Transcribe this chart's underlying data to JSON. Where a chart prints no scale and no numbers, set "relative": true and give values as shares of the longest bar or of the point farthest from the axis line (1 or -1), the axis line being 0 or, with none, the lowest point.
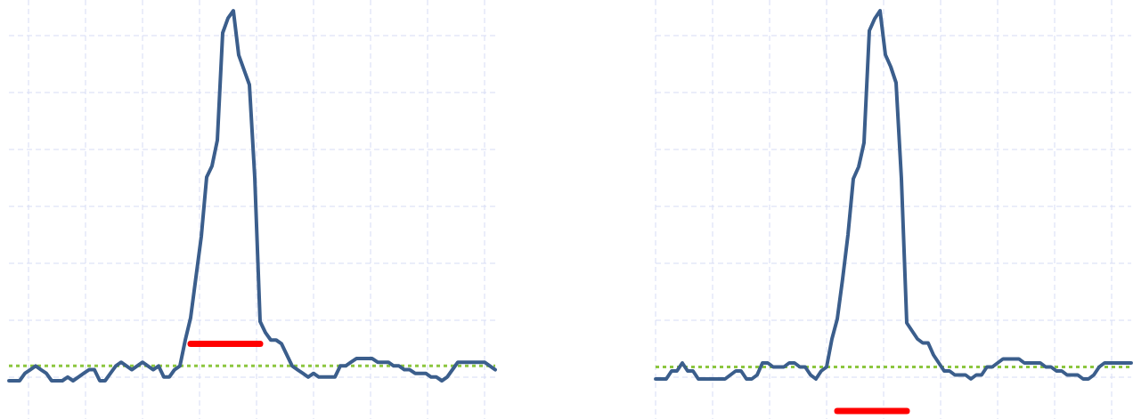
{
  "chart_data": [
    {
      "type": "line",
      "relative": true,
      "grid": true,
      "categories": [
        null,
        null,
        null,
        null,
        null,
        null,
        null,
        null,
        null,
        null,
        null,
        null,
        null,
        null,
        null,
        null,
        null,
        null,
        null,
        null,
        null,
        null,
        null,
        null,
        null,
        null,
        null,
        null,
        null,
        null,
        null,
        null,
        null,
        null,
        null,
        null,
        null,
        null,
        null,
        null,
        null,
        null,
        null,
        null,
        null,
        null,
        null,
        null,
        null,
        null,
        null,
        null,
        null,
        null,
        null,
        null,
        null,
        null,
        null,
        null,
        null,
        null,
        null,
        null,
        null,
        null,
        null,
        null,
        null,
        null,
        null,
        null,
        null,
        null,
        null,
        null,
        null,
        null,
        null,
        null,
        null,
        null,
        null,
        null,
        null,
        null,
        null,
        null,
        null,
        null,
        null,
        null
      ],
      "series": [
        {
          "color": "#3b5e8c",
          "values": [
            0,
            0,
            0,
            0.02,
            0.03,
            0.04,
            0.03,
            0.02,
            0,
            0,
            0,
            0.01,
            0,
            0.01,
            0.02,
            0.03,
            0.03,
            0,
            0,
            0.02,
            0.04,
            0.05,
            0.04,
            0.03,
            0.04,
            0.05,
            0.04,
            0.03,
            0.04,
            0.01,
            0.01,
            0.03,
            0.04,
            0.11,
            0.17,
            0.28,
            0.39,
            0.55,
            0.58,
            0.65,
            0.94,
            0.98,
            1,
            0.88,
            0.84,
            0.8,
            0.55,
            0.16,
            0.13,
            0.11,
            0.11,
            0.1,
            0.07,
            0.04,
            0.03,
            0.02,
            0.01,
            0.02,
            0.01,
            0.01,
            0.01,
            0.01,
            0.04,
            0.04,
            0.05,
            0.06,
            0.06,
            0.06,
            0.06,
            0.05,
            0.05,
            0.05,
            0.04,
            0.04,
            0.03,
            0.03,
            0.02,
            0.02,
            0.02,
            0.01,
            0.01,
            0,
            0.01,
            0.03,
            0.05,
            0.05,
            0.05,
            0.05,
            0.05,
            0.05,
            0.04,
            0.03
          ]
        },
        {
          "color": "#ff0000",
          "values": [
            null,
            null,
            null,
            null,
            null,
            null,
            null,
            null,
            null,
            null,
            null,
            null,
            null,
            null,
            null,
            null,
            null,
            null,
            null,
            null,
            null,
            null,
            null,
            null,
            null,
            null,
            null,
            null,
            null,
            null,
            null,
            null,
            null,
            null,
            0.1,
            0.1,
            0.1,
            0.1,
            0.1,
            0.1,
            0.1,
            0.1,
            0.1,
            0.1,
            0.1,
            0.1,
            0.1,
            0.1,
            null,
            null,
            null,
            null,
            null,
            null,
            null,
            null,
            null,
            null,
            null,
            null,
            null,
            null,
            null,
            null,
            null,
            null,
            null,
            null,
            null,
            null,
            null,
            null,
            null,
            null,
            null,
            null,
            null,
            null,
            null,
            null,
            null,
            null,
            null,
            null,
            null,
            null,
            null,
            null,
            null,
            null,
            null,
            null
          ]
        }
      ],
      "ref_lines": [
        {
          "axis": "y",
          "value": 0.04,
          "color": "#8cc63f",
          "line_style": "dotted"
        }
      ]
    },
    {
      "type": "line",
      "relative": true,
      "grid": true,
      "categories": [
        null,
        null,
        null,
        null,
        null,
        null,
        null,
        null,
        null,
        null,
        null,
        null,
        null,
        null,
        null,
        null,
        null,
        null,
        null,
        null,
        null,
        null,
        null,
        null,
        null,
        null,
        null,
        null,
        null,
        null,
        null,
        null,
        null,
        null,
        null,
        null,
        null,
        null,
        null,
        null,
        null,
        null,
        null,
        null,
        null,
        null,
        null,
        null,
        null,
        null,
        null,
        null,
        null,
        null,
        null,
        null,
        null,
        null,
        null,
        null,
        null,
        null,
        null,
        null,
        null,
        null,
        null,
        null,
        null,
        null,
        null,
        null,
        null,
        null,
        null,
        null,
        null,
        null,
        null,
        null,
        null,
        null,
        null,
        null,
        null,
        null,
        null,
        null,
        null,
        null
      ],
      "series": [
        {
          "color": "#3b5e8c",
          "values": [
            0.08,
            0.08,
            0.08,
            0.1,
            0.1,
            0.12,
            0.1,
            0.1,
            0.08,
            0.08,
            0.08,
            0.08,
            0.08,
            0.08,
            0.09,
            0.1,
            0.1,
            0.08,
            0.08,
            0.09,
            0.12,
            0.12,
            0.11,
            0.11,
            0.11,
            0.12,
            0.12,
            0.11,
            0.11,
            0.09,
            0.08,
            0.1,
            0.11,
            0.18,
            0.23,
            0.33,
            0.44,
            0.58,
            0.61,
            0.67,
            0.95,
            0.98,
            1,
            0.89,
            0.86,
            0.82,
            0.58,
            0.22,
            0.2,
            0.18,
            0.17,
            0.17,
            0.14,
            0.12,
            0.1,
            0.1,
            0.09,
            0.09,
            0.09,
            0.08,
            0.09,
            0.09,
            0.11,
            0.11,
            0.12,
            0.13,
            0.13,
            0.13,
            0.13,
            0.12,
            0.12,
            0.12,
            0.12,
            0.11,
            0.11,
            0.1,
            0.1,
            0.09,
            0.09,
            0.09,
            0.08,
            0.08,
            0.09,
            0.11,
            0.12,
            0.12,
            0.12,
            0.12,
            0.12,
            0.12
          ]
        },
        {
          "color": "#ff0000",
          "values": [
            null,
            null,
            null,
            null,
            null,
            null,
            null,
            null,
            null,
            null,
            null,
            null,
            null,
            null,
            null,
            null,
            null,
            null,
            null,
            null,
            null,
            null,
            null,
            null,
            null,
            null,
            null,
            null,
            null,
            null,
            null,
            null,
            null,
            null,
            0,
            0,
            0,
            0,
            0,
            0,
            0,
            0,
            0,
            0,
            0,
            0,
            0,
            0,
            null,
            null,
            null,
            null,
            null,
            null,
            null,
            null,
            null,
            null,
            null,
            null,
            null,
            null,
            null,
            null,
            null,
            null,
            null,
            null,
            null,
            null,
            null,
            null,
            null,
            null,
            null,
            null,
            null,
            null,
            null,
            null,
            null,
            null,
            null,
            null,
            null,
            null,
            null,
            null,
            null,
            null
          ]
        }
      ],
      "ref_lines": [
        {
          "axis": "y",
          "value": 0.11,
          "color": "#8cc63f",
          "line_style": "dotted"
        }
      ]
    }
  ]
}
